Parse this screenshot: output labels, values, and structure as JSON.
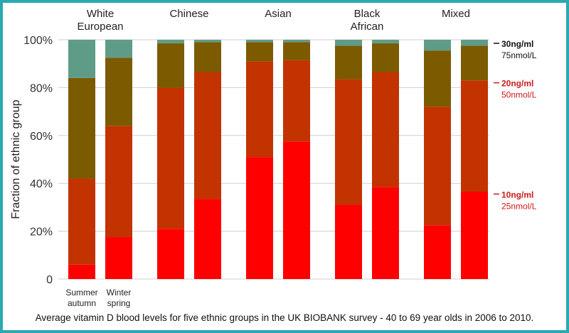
{
  "chart_data": {
    "type": "bar",
    "stacked": true,
    "ylabel": "Fraction of ethnic group",
    "yticks": [
      "0",
      "20%",
      "40%",
      "60%",
      "80%",
      "100%"
    ],
    "ylim": [
      0,
      100
    ],
    "grid": true,
    "caption": "Average vitamin D blood levels for five ethnic groups in the UK BIOBANK survey - 40 to 69 year olds in 2006 to 2010.",
    "season_labels": [
      [
        "Summer",
        "autumn"
      ],
      [
        "Winter",
        "spring"
      ]
    ],
    "groups": [
      {
        "label": [
          "White",
          "European"
        ],
        "bars": [
          [
            6,
            42,
            84
          ],
          [
            17.5,
            64,
            92.5
          ]
        ]
      },
      {
        "label": [
          "Chinese"
        ],
        "bars": [
          [
            21,
            80,
            98.5
          ],
          [
            33.5,
            86.5,
            99
          ]
        ]
      },
      {
        "label": [
          "Asian"
        ],
        "bars": [
          [
            51,
            91,
            99
          ],
          [
            57.5,
            91.5,
            99
          ]
        ]
      },
      {
        "label": [
          "Black",
          "African"
        ],
        "bars": [
          [
            31,
            83.5,
            97.5
          ],
          [
            38.5,
            86.5,
            98.5
          ]
        ]
      },
      {
        "label": [
          "Mixed"
        ],
        "bars": [
          [
            22.5,
            72,
            95.5
          ],
          [
            36.5,
            83,
            97.5
          ]
        ]
      }
    ],
    "thresholds": [
      {
        "value": 100,
        "label": "30ng/ml",
        "sublabel": "75nmol/L",
        "color": "#111111"
      },
      {
        "value": 83.5,
        "label": "20ng/ml",
        "sublabel": "50nmol/L",
        "color": "#cc1a1a"
      },
      {
        "value": 37,
        "label": "10ng/ml",
        "sublabel": "25nmol/L",
        "color": "#cc1a1a"
      }
    ],
    "colors": [
      "#ff0000",
      "#c23300",
      "#7b5a00",
      "#5f9c88"
    ]
  }
}
